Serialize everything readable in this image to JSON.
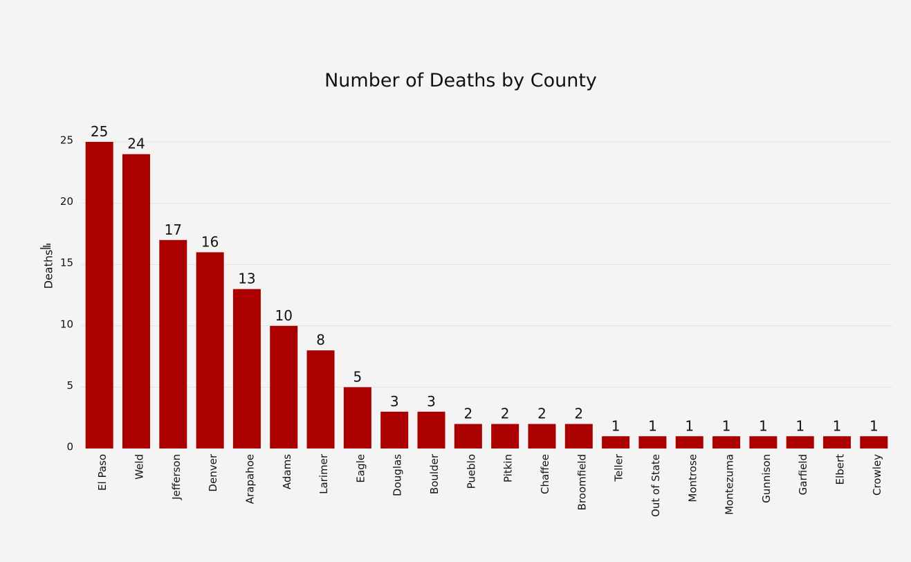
{
  "chart_data": {
    "type": "bar",
    "title": "Number of Deaths by County",
    "xlabel": "",
    "ylabel": "Deaths",
    "ylim": [
      0,
      25
    ],
    "yticks": [
      0,
      5,
      10,
      15,
      20,
      25
    ],
    "grid": true,
    "bar_color": "#aa0000",
    "categories": [
      "El Paso",
      "Weld",
      "Jefferson",
      "Denver",
      "Arapahoe",
      "Adams",
      "Larimer",
      "Eagle",
      "Douglas",
      "Boulder",
      "Pueblo",
      "Pitkin",
      "Chaffee",
      "Broomfield",
      "Teller",
      "Out of State",
      "Montrose",
      "Montezuma",
      "Gunnison",
      "Garfield",
      "Elbert",
      "Crowley"
    ],
    "values": [
      25,
      24,
      17,
      16,
      13,
      10,
      8,
      5,
      3,
      3,
      2,
      2,
      2,
      2,
      1,
      1,
      1,
      1,
      1,
      1,
      1,
      1
    ],
    "icons": {
      "sort": "sort-descending-icon"
    }
  }
}
